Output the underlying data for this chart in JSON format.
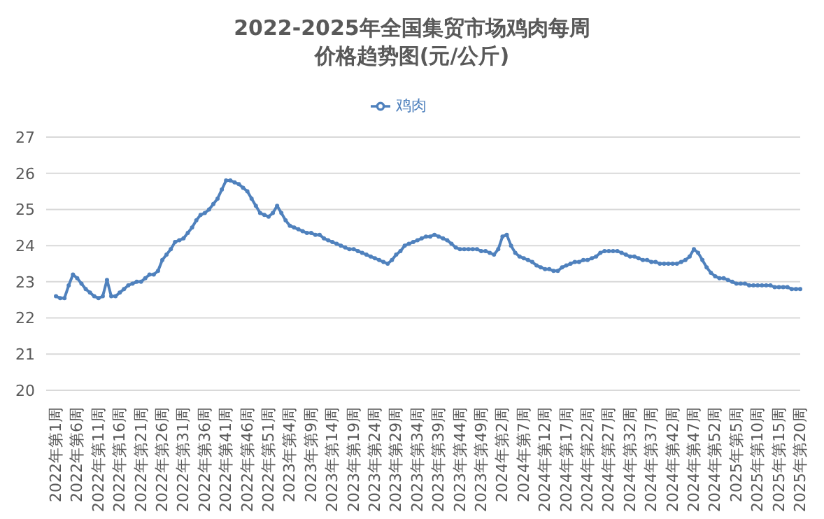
{
  "chart_data": {
    "type": "line",
    "title": "2022-2025年全国集贸市场鸡肉每周价格趋势图(元/公斤)",
    "categories": [
      "2022年第1周",
      null,
      null,
      null,
      null,
      "2022年第6周",
      null,
      null,
      null,
      null,
      "2022年第11周",
      null,
      null,
      null,
      null,
      "2022年第16周",
      null,
      null,
      null,
      null,
      "2022年第21周",
      null,
      null,
      null,
      null,
      "2022年第26周",
      null,
      null,
      null,
      null,
      "2022年第31周",
      null,
      null,
      null,
      null,
      "2022年第36周",
      null,
      null,
      null,
      null,
      "2022年第41周",
      null,
      null,
      null,
      null,
      "2022年第46周",
      null,
      null,
      null,
      null,
      "2022年第51周",
      null,
      null,
      null,
      null,
      "2023年第4周",
      null,
      null,
      null,
      null,
      "2023年第9周",
      null,
      null,
      null,
      null,
      "2023年第14周",
      null,
      null,
      null,
      null,
      "2023年第19周",
      null,
      null,
      null,
      null,
      "2023年第24周",
      null,
      null,
      null,
      null,
      "2023年第29周",
      null,
      null,
      null,
      null,
      "2023年第34周",
      null,
      null,
      null,
      null,
      "2023年第39周",
      null,
      null,
      null,
      null,
      "2023年第44周",
      null,
      null,
      null,
      null,
      "2023年第49周",
      null,
      null,
      null,
      null,
      "2024年第2周",
      null,
      null,
      null,
      null,
      "2024年第7周",
      null,
      null,
      null,
      null,
      "2024年第12周",
      null,
      null,
      null,
      null,
      "2024年第17周",
      null,
      null,
      null,
      null,
      "2024年第22周",
      null,
      null,
      null,
      null,
      "2024年第27周",
      null,
      null,
      null,
      null,
      "2024年第32周",
      null,
      null,
      null,
      null,
      "2024年第37周",
      null,
      null,
      null,
      null,
      "2024年第42周",
      null,
      null,
      null,
      null,
      "2024年第47周",
      null,
      null,
      null,
      null,
      "2024年第52周",
      null,
      null,
      null,
      null,
      "2025年第5周",
      null,
      null,
      null,
      null,
      "2025年第10周",
      null,
      null,
      null,
      null,
      "2025年第15周",
      null,
      null,
      null,
      null,
      "2025年第20周"
    ],
    "series": [
      {
        "name": "鸡肉",
        "color": "#4f81bd",
        "values": [
          22.6,
          22.55,
          22.55,
          22.9,
          23.2,
          23.1,
          22.95,
          22.8,
          22.7,
          22.6,
          22.55,
          22.6,
          23.05,
          22.6,
          22.6,
          22.7,
          22.8,
          22.9,
          22.95,
          23.0,
          23.0,
          23.1,
          23.2,
          23.2,
          23.3,
          23.6,
          23.75,
          23.9,
          24.1,
          24.15,
          24.2,
          24.35,
          24.5,
          24.7,
          24.85,
          24.9,
          25.0,
          25.15,
          25.3,
          25.55,
          25.8,
          25.8,
          25.75,
          25.7,
          25.6,
          25.5,
          25.3,
          25.1,
          24.9,
          24.85,
          24.8,
          24.9,
          25.1,
          24.9,
          24.7,
          24.55,
          24.5,
          24.45,
          24.4,
          24.35,
          24.35,
          24.3,
          24.3,
          24.2,
          24.15,
          24.1,
          24.05,
          24.0,
          23.95,
          23.9,
          23.9,
          23.85,
          23.8,
          23.75,
          23.7,
          23.65,
          23.6,
          23.55,
          23.5,
          23.6,
          23.75,
          23.85,
          24.0,
          24.05,
          24.1,
          24.15,
          24.2,
          24.25,
          24.25,
          24.3,
          24.25,
          24.2,
          24.15,
          24.05,
          23.95,
          23.9,
          23.9,
          23.9,
          23.9,
          23.9,
          23.85,
          23.85,
          23.8,
          23.75,
          23.9,
          24.25,
          24.3,
          24.0,
          23.8,
          23.7,
          23.65,
          23.6,
          23.55,
          23.45,
          23.4,
          23.35,
          23.35,
          23.3,
          23.3,
          23.4,
          23.45,
          23.5,
          23.55,
          23.55,
          23.6,
          23.6,
          23.65,
          23.7,
          23.8,
          23.85,
          23.85,
          23.85,
          23.85,
          23.8,
          23.75,
          23.7,
          23.7,
          23.65,
          23.6,
          23.6,
          23.55,
          23.55,
          23.5,
          23.5,
          23.5,
          23.5,
          23.5,
          23.55,
          23.6,
          23.7,
          23.9,
          23.8,
          23.6,
          23.4,
          23.25,
          23.15,
          23.1,
          23.1,
          23.05,
          23.0,
          22.95,
          22.95,
          22.95,
          22.9,
          22.9,
          22.9,
          22.9,
          22.9,
          22.9,
          22.85,
          22.85,
          22.85,
          22.85,
          22.8,
          22.8,
          22.8
        ]
      }
    ],
    "ylim": [
      20,
      27
    ],
    "yticks": [
      20,
      21,
      22,
      23,
      24,
      25,
      26,
      27
    ],
    "grid": "y",
    "legend": "top",
    "marker": "circle",
    "line_style": "solid"
  }
}
